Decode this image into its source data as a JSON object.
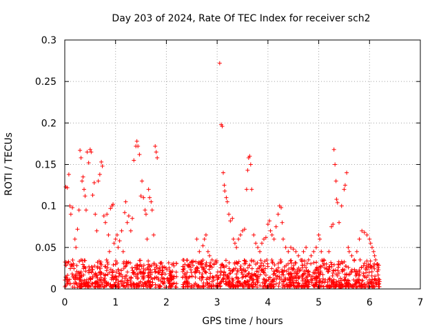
{
  "chart_data": {
    "type": "scatter",
    "title": "Day 203 of 2024, Rate Of TEC Index for receiver sch2",
    "xlabel": "GPS time / hours",
    "ylabel": "ROTI / TECUs",
    "xlim": [
      0,
      7
    ],
    "ylim": [
      0,
      0.3
    ],
    "xticks": [
      0,
      1,
      2,
      3,
      4,
      5,
      6,
      7
    ],
    "xtick_labels": [
      "0",
      "1",
      "2",
      "3",
      "4",
      "5",
      "6",
      "7"
    ],
    "yticks": [
      0,
      0.05,
      0.1,
      0.15,
      0.2,
      0.25,
      0.3
    ],
    "ytick_labels": [
      "0",
      "0.05",
      "0.1",
      "0.15",
      "0.2",
      "0.25",
      "0.3"
    ],
    "grid": true,
    "marker": "+",
    "color": "#ff0000",
    "series": [
      {
        "name": "ROTI",
        "points": [
          [
            0.02,
            0.123
          ],
          [
            0.05,
            0.122
          ],
          [
            0.08,
            0.138
          ],
          [
            0.1,
            0.1
          ],
          [
            0.12,
            0.09
          ],
          [
            0.15,
            0.098
          ],
          [
            0.2,
            0.06
          ],
          [
            0.22,
            0.05
          ],
          [
            0.25,
            0.072
          ],
          [
            0.28,
            0.095
          ],
          [
            0.3,
            0.167
          ],
          [
            0.32,
            0.158
          ],
          [
            0.34,
            0.13
          ],
          [
            0.36,
            0.135
          ],
          [
            0.38,
            0.12
          ],
          [
            0.4,
            0.112
          ],
          [
            0.42,
            0.095
          ],
          [
            0.44,
            0.165
          ],
          [
            0.47,
            0.152
          ],
          [
            0.5,
            0.168
          ],
          [
            0.52,
            0.165
          ],
          [
            0.55,
            0.113
          ],
          [
            0.58,
            0.128
          ],
          [
            0.6,
            0.09
          ],
          [
            0.63,
            0.07
          ],
          [
            0.66,
            0.13
          ],
          [
            0.69,
            0.138
          ],
          [
            0.72,
            0.153
          ],
          [
            0.74,
            0.148
          ],
          [
            0.77,
            0.088
          ],
          [
            0.8,
            0.08
          ],
          [
            0.83,
            0.09
          ],
          [
            0.86,
            0.065
          ],
          [
            0.88,
            0.045
          ],
          [
            0.9,
            0.097
          ],
          [
            0.93,
            0.1
          ],
          [
            0.95,
            0.102
          ],
          [
            0.97,
            0.055
          ],
          [
            1.0,
            0.06
          ],
          [
            1.03,
            0.065
          ],
          [
            1.05,
            0.05
          ],
          [
            1.08,
            0.058
          ],
          [
            1.12,
            0.07
          ],
          [
            1.15,
            0.045
          ],
          [
            1.18,
            0.092
          ],
          [
            1.2,
            0.105
          ],
          [
            1.23,
            0.08
          ],
          [
            1.26,
            0.088
          ],
          [
            1.3,
            0.07
          ],
          [
            1.33,
            0.085
          ],
          [
            1.36,
            0.155
          ],
          [
            1.4,
            0.172
          ],
          [
            1.42,
            0.178
          ],
          [
            1.44,
            0.172
          ],
          [
            1.47,
            0.162
          ],
          [
            1.5,
            0.112
          ],
          [
            1.52,
            0.13
          ],
          [
            1.55,
            0.11
          ],
          [
            1.58,
            0.095
          ],
          [
            1.6,
            0.09
          ],
          [
            1.62,
            0.06
          ],
          [
            1.65,
            0.12
          ],
          [
            1.67,
            0.11
          ],
          [
            1.7,
            0.105
          ],
          [
            1.72,
            0.095
          ],
          [
            1.75,
            0.065
          ],
          [
            1.78,
            0.172
          ],
          [
            1.8,
            0.165
          ],
          [
            1.82,
            0.158
          ],
          [
            1.85,
            0.02
          ],
          [
            2.6,
            0.06
          ],
          [
            2.65,
            0.045
          ],
          [
            2.72,
            0.052
          ],
          [
            2.75,
            0.06
          ],
          [
            2.78,
            0.065
          ],
          [
            2.82,
            0.045
          ],
          [
            2.85,
            0.04
          ],
          [
            2.9,
            0.035
          ],
          [
            3.05,
            0.272
          ],
          [
            3.08,
            0.198
          ],
          [
            3.1,
            0.196
          ],
          [
            3.12,
            0.14
          ],
          [
            3.14,
            0.125
          ],
          [
            3.15,
            0.118
          ],
          [
            3.18,
            0.11
          ],
          [
            3.2,
            0.105
          ],
          [
            3.23,
            0.09
          ],
          [
            3.26,
            0.082
          ],
          [
            3.3,
            0.085
          ],
          [
            3.32,
            0.06
          ],
          [
            3.35,
            0.055
          ],
          [
            3.38,
            0.05
          ],
          [
            3.42,
            0.06
          ],
          [
            3.46,
            0.065
          ],
          [
            3.5,
            0.07
          ],
          [
            3.54,
            0.072
          ],
          [
            3.58,
            0.12
          ],
          [
            3.6,
            0.143
          ],
          [
            3.62,
            0.158
          ],
          [
            3.64,
            0.16
          ],
          [
            3.66,
            0.15
          ],
          [
            3.68,
            0.12
          ],
          [
            3.72,
            0.065
          ],
          [
            3.76,
            0.055
          ],
          [
            3.8,
            0.05
          ],
          [
            3.84,
            0.045
          ],
          [
            3.88,
            0.055
          ],
          [
            3.92,
            0.06
          ],
          [
            3.96,
            0.062
          ],
          [
            4.0,
            0.078
          ],
          [
            4.03,
            0.082
          ],
          [
            4.05,
            0.07
          ],
          [
            4.08,
            0.065
          ],
          [
            4.12,
            0.06
          ],
          [
            4.16,
            0.075
          ],
          [
            4.2,
            0.09
          ],
          [
            4.23,
            0.1
          ],
          [
            4.26,
            0.098
          ],
          [
            4.28,
            0.08
          ],
          [
            4.3,
            0.06
          ],
          [
            4.35,
            0.05
          ],
          [
            4.4,
            0.045
          ],
          [
            4.45,
            0.05
          ],
          [
            4.5,
            0.048
          ],
          [
            4.55,
            0.045
          ],
          [
            4.6,
            0.04
          ],
          [
            4.65,
            0.035
          ],
          [
            4.7,
            0.045
          ],
          [
            4.75,
            0.05
          ],
          [
            4.8,
            0.035
          ],
          [
            4.85,
            0.04
          ],
          [
            4.9,
            0.045
          ],
          [
            4.95,
            0.05
          ],
          [
            5.0,
            0.065
          ],
          [
            5.02,
            0.06
          ],
          [
            5.05,
            0.045
          ],
          [
            5.1,
            0.035
          ],
          [
            5.15,
            0.03
          ],
          [
            5.2,
            0.045
          ],
          [
            5.25,
            0.075
          ],
          [
            5.28,
            0.078
          ],
          [
            5.3,
            0.168
          ],
          [
            5.32,
            0.15
          ],
          [
            5.34,
            0.13
          ],
          [
            5.35,
            0.108
          ],
          [
            5.37,
            0.104
          ],
          [
            5.4,
            0.08
          ],
          [
            5.45,
            0.1
          ],
          [
            5.5,
            0.12
          ],
          [
            5.52,
            0.125
          ],
          [
            5.55,
            0.14
          ],
          [
            5.58,
            0.05
          ],
          [
            5.6,
            0.045
          ],
          [
            5.65,
            0.04
          ],
          [
            5.7,
            0.035
          ],
          [
            5.75,
            0.045
          ],
          [
            5.8,
            0.06
          ],
          [
            5.85,
            0.07
          ],
          [
            5.9,
            0.068
          ],
          [
            5.95,
            0.065
          ],
          [
            6.0,
            0.06
          ],
          [
            6.02,
            0.055
          ],
          [
            6.05,
            0.05
          ],
          [
            6.08,
            0.045
          ],
          [
            6.1,
            0.04
          ],
          [
            6.12,
            0.035
          ],
          [
            6.15,
            0.03
          ]
        ]
      }
    ],
    "baseline_band": {
      "x_segments": [
        [
          0.0,
          2.2
        ],
        [
          2.3,
          6.2
        ]
      ],
      "y_range": [
        0.002,
        0.035
      ],
      "count": 1400
    }
  }
}
